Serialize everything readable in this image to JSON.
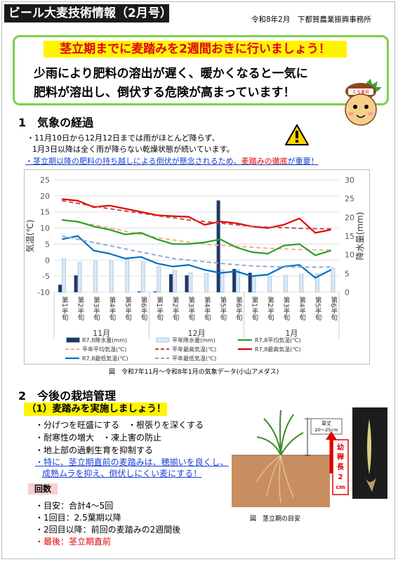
{
  "header": {
    "title": "ビール大麦技術情報（2月号）",
    "issuer": "令和8年2月　下都賀農業振興事務所"
  },
  "banner": {
    "title": "茎立期までに麦踏みを2週間おきに行いましょう！",
    "message_line1": "少雨により肥料の溶出が遅く、暖かくなると一気に",
    "message_line2": "肥料が溶出し、倒伏する危険が高まっています！",
    "mascot_hat_text": "とち麦坊"
  },
  "section1": {
    "heading": "1　気象の経過",
    "note1": "・11月10日から12月12日までは雨がほとんど降らず、",
    "note2": "1月3日以降は全く雨が降らない乾燥状態が続いています。",
    "note3_blue": "・茎立期以降の肥料の持ち越しによる倒伏が懸念されるため、",
    "note3_red": "麦踏みの徹底",
    "note3_tail": "が重要！",
    "chart_caption": "図　令和7年11月～令和8年1月の気象データ(小山アメダス)"
  },
  "chart_data": {
    "type": "bar",
    "categories": [
      "第1半旬",
      "第2半旬",
      "第3半旬",
      "第4半旬",
      "第5半旬",
      "第6半旬",
      "第1半旬",
      "第2半旬",
      "第3半旬",
      "第4半旬",
      "第5半旬",
      "第6半旬",
      "第1半旬",
      "第2半旬",
      "第3半旬",
      "第4半旬",
      "第5半旬",
      "第6半旬"
    ],
    "months": [
      "11月",
      "12月",
      "1月"
    ],
    "ylabel_left": "気温(℃)",
    "ylabel_right": "降水量(mm)",
    "ylim_left": [
      -10,
      25
    ],
    "ylim_right": [
      0,
      30
    ],
    "yticks_left": [
      -10,
      -5,
      0,
      5,
      10,
      15,
      20,
      25
    ],
    "yticks_right": [
      0,
      5,
      10,
      15,
      20,
      25,
      30
    ],
    "series": [
      {
        "name": "R7,8降水量(mm)",
        "kind": "bar",
        "axis": "right",
        "color": "#1f3864",
        "values": [
          2.0,
          4.5,
          0,
          0,
          0,
          0.2,
          0.2,
          4.8,
          4.5,
          0,
          24.5,
          6.2,
          5.2,
          0,
          0,
          0,
          0,
          0
        ]
      },
      {
        "name": "平年降水量(mm)",
        "kind": "bar",
        "axis": "right",
        "color": "#9dc3e6",
        "values": [
          9.0,
          8.0,
          8.3,
          8.3,
          8.8,
          8.2,
          6.8,
          5.8,
          5.2,
          5.0,
          6.0,
          6.0,
          4.5,
          4.3,
          4.5,
          4.8,
          5.0,
          6.5
        ]
      },
      {
        "name": "平年平均気温(℃)",
        "kind": "line",
        "axis": "left",
        "color": "#f4b183",
        "dashed": true,
        "values": [
          12.5,
          11.8,
          11.0,
          10.0,
          9.0,
          8.0,
          7.0,
          6.3,
          5.6,
          5.0,
          4.6,
          4.3,
          4.0,
          3.7,
          3.5,
          3.3,
          3.2,
          3.1
        ]
      },
      {
        "name": "R7,8最高気温(℃)",
        "kind": "line",
        "axis": "left",
        "color": "#e00000",
        "values": [
          19.0,
          18.5,
          16.5,
          17.0,
          16.0,
          15.0,
          14.0,
          13.7,
          13.5,
          11.0,
          12.0,
          11.5,
          10.5,
          10.0,
          11.0,
          13.0,
          8.5,
          9.5
        ]
      },
      {
        "name": "R7,8平均気温(℃)",
        "kind": "line",
        "axis": "left",
        "color": "#2aa02a",
        "values": [
          12.5,
          12.0,
          10.5,
          9.5,
          8.0,
          8.5,
          6.5,
          5.0,
          5.0,
          5.5,
          6.5,
          4.0,
          2.5,
          2.0,
          4.5,
          5.0,
          1.5,
          3.0
        ]
      },
      {
        "name": "平年最高気温(℃)",
        "kind": "line",
        "axis": "left",
        "color": "#c0504d",
        "dashed": true,
        "values": [
          18.5,
          17.7,
          16.8,
          16.0,
          15.3,
          14.6,
          13.8,
          13.2,
          12.5,
          12.0,
          11.5,
          11.0,
          10.5,
          10.3,
          10.1,
          9.9,
          9.8,
          9.7
        ]
      },
      {
        "name": "R7,8最低気温(℃)",
        "kind": "line",
        "axis": "left",
        "color": "#0070c0",
        "values": [
          6.5,
          7.5,
          3.0,
          2.0,
          0.5,
          1.0,
          -1.0,
          -2.0,
          -1.5,
          -3.0,
          -4.0,
          -3.5,
          -5.0,
          -4.5,
          -2.0,
          -1.5,
          -5.5,
          -3.0
        ]
      },
      {
        "name": "平年最低気温(℃)",
        "kind": "line",
        "axis": "left",
        "color": "#8faadc",
        "dashed": true,
        "values": [
          7.5,
          6.5,
          5.5,
          4.5,
          3.5,
          2.5,
          1.5,
          0.5,
          0.0,
          -0.5,
          -1.0,
          -1.4,
          -1.8,
          -2.0,
          -2.1,
          -2.2,
          -2.2,
          -2.1
        ]
      }
    ]
  },
  "section2": {
    "heading": "2　今後の栽培管理",
    "subheading": "（1）麦踏みを実施しましょう！",
    "items": [
      "・分げつを旺盛にする　・根張りを深くする",
      "・耐寒性の増大　・凍上害の防止",
      "・地上部の過剰生育を抑制する"
    ],
    "highlight_line1": "・特に、茎立期直前の麦踏みは、穂揃いを良くし、",
    "highlight_line2": "成熟ムラを抑え、倒伏しにくい麦にする！",
    "count_label": "回数",
    "counts": [
      "・目安：合計4～5回",
      "・1回目：2.5葉期以降",
      "・2回目以降：前回の麦踏みの2週間後"
    ],
    "last_count": "・最後：茎立期直前",
    "figure": {
      "height_label": "草丈",
      "height_value": "20～25cm",
      "stem_label_chars": [
        "幼",
        "稈",
        "長",
        "2",
        "cm"
      ],
      "caption": "図　茎立期の目安"
    }
  }
}
